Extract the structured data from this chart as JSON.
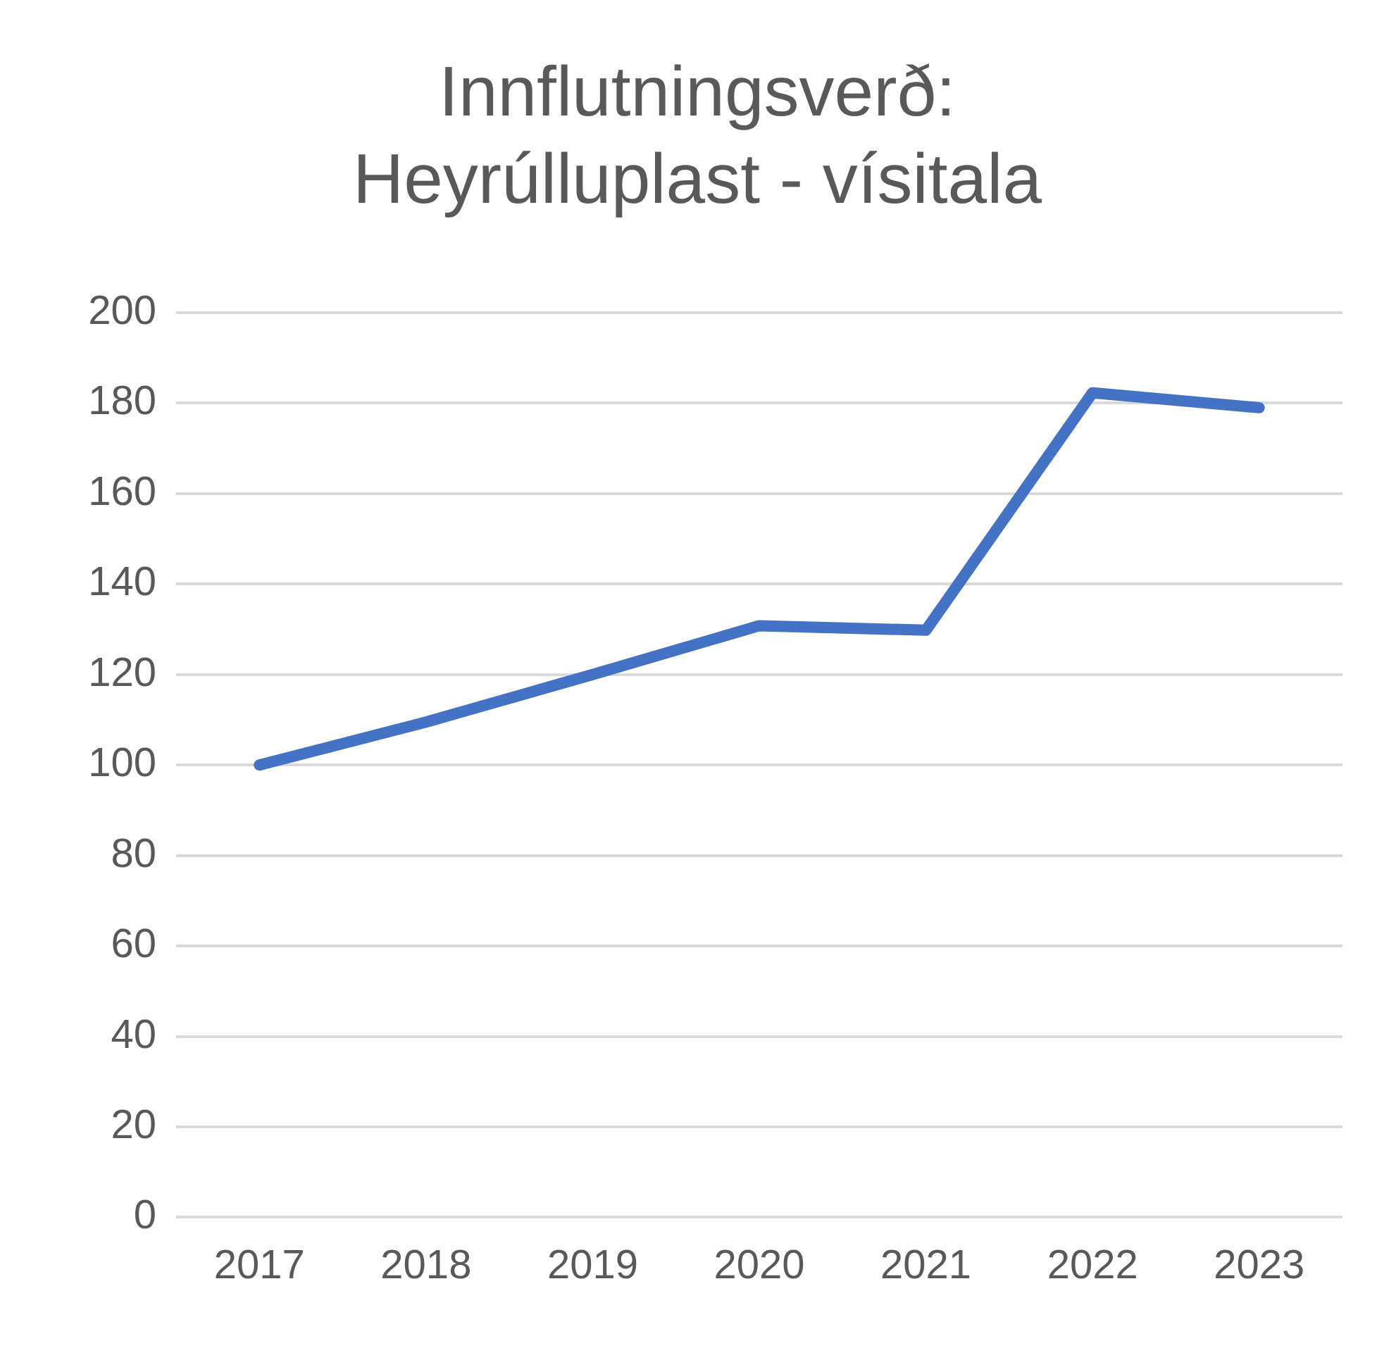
{
  "chart_data": {
    "type": "line",
    "title": "Innflutningsverð: Heyrúlluplast - vísitala",
    "categories": [
      "2017",
      "2018",
      "2019",
      "2020",
      "2021",
      "2022",
      "2023"
    ],
    "series": [
      {
        "color": "#4472c4",
        "values": [
          100,
          109.5,
          120,
          130.8,
          129.8,
          182.3,
          179
        ]
      }
    ],
    "ylim": [
      0,
      200
    ],
    "yticks": [
      0,
      20,
      40,
      60,
      80,
      100,
      120,
      140,
      160,
      180,
      200
    ],
    "grid": "y",
    "legend": false,
    "marker": "none",
    "line_style": "solid"
  }
}
